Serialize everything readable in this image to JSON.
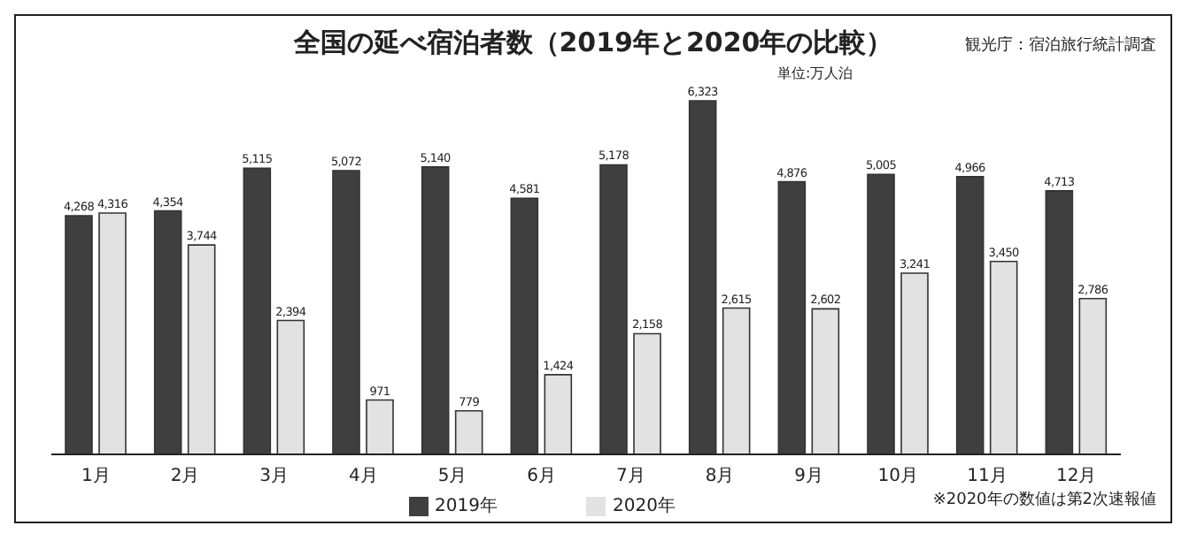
{
  "chart_data": {
    "type": "bar",
    "title": "全国の延べ宿泊者数（2019年と2020年の比較）",
    "subtitle": "単位:万人泊",
    "annotations": [
      "観光庁：宿泊旅行統計調査",
      "※2020年の数値は第2次速報値"
    ],
    "categories": [
      "1月",
      "2月",
      "3月",
      "4月",
      "5月",
      "6月",
      "7月",
      "8月",
      "9月",
      "10月",
      "11月",
      "12月"
    ],
    "series": [
      {
        "name": "2019年",
        "color": "#3f3f3f",
        "values": [
          4268,
          4354,
          5115,
          5072,
          5140,
          4581,
          5178,
          6323,
          4876,
          5005,
          4966,
          4713
        ],
        "value_labels": [
          "4,268",
          "4,354",
          "5,115",
          "5,072",
          "5,140",
          "4,581",
          "5,178",
          "6,323",
          "4,876",
          "5,005",
          "4,966",
          "4,713"
        ]
      },
      {
        "name": "2020年",
        "color": "#e2e2e2",
        "values": [
          4316,
          3744,
          2394,
          971,
          779,
          1424,
          2158,
          2615,
          2602,
          3241,
          3450,
          2786
        ],
        "value_labels": [
          "4,316",
          "3,744",
          "2,394",
          "971",
          "779",
          "1,424",
          "2,158",
          "2,615",
          "2,602",
          "3,241",
          "3,450",
          "2,786"
        ]
      }
    ],
    "grid": false,
    "legend": "bottom"
  }
}
